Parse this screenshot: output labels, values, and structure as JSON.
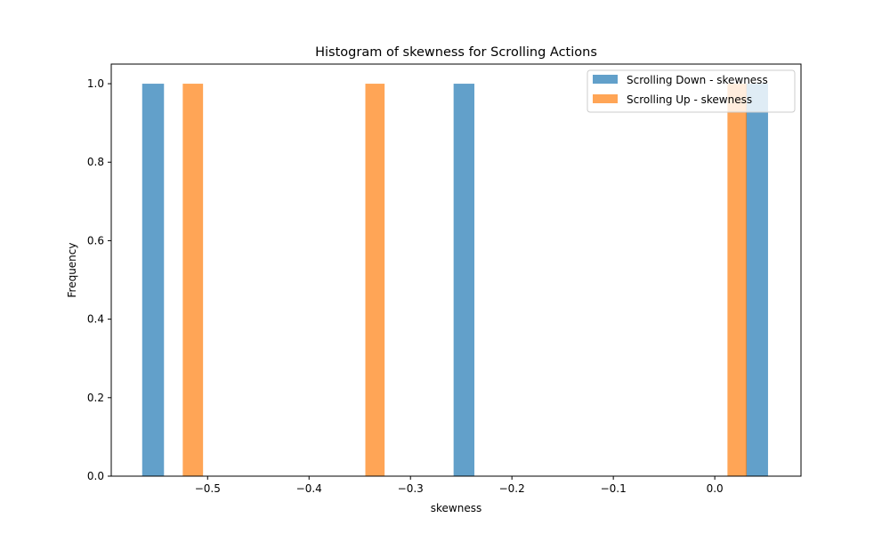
{
  "chart_data": {
    "type": "bar",
    "title": "Histogram of skewness for Scrolling Actions",
    "xlabel": "skewness",
    "ylabel": "Frequency",
    "xlim": [
      -0.595,
      0.085
    ],
    "ylim": [
      0,
      1.05
    ],
    "x_ticks": [
      -0.5,
      -0.4,
      -0.3,
      -0.2,
      -0.1,
      0.0
    ],
    "x_tick_labels": [
      "−0.5",
      "−0.4",
      "−0.3",
      "−0.2",
      "−0.1",
      "0.0"
    ],
    "y_ticks": [
      0.0,
      0.2,
      0.4,
      0.6,
      0.8,
      1.0
    ],
    "y_tick_labels": [
      "0.0",
      "0.2",
      "0.4",
      "0.6",
      "0.8",
      "1.0"
    ],
    "grid": false,
    "legend_position": "top-right",
    "series": [
      {
        "name": "Scrolling Down - skewness",
        "color": "#1f77b4",
        "opacity": 0.7,
        "bins": [
          {
            "x0": -0.5645,
            "x1": -0.543,
            "count": 1
          },
          {
            "x0": -0.2575,
            "x1": -0.237,
            "count": 1
          },
          {
            "x0": 0.0305,
            "x1": 0.0525,
            "count": 1
          }
        ]
      },
      {
        "name": "Scrolling Up - skewness",
        "color": "#ff7f0e",
        "opacity": 0.7,
        "bins": [
          {
            "x0": -0.5245,
            "x1": -0.5045,
            "count": 1
          },
          {
            "x0": -0.3445,
            "x1": -0.3255,
            "count": 1
          },
          {
            "x0": 0.0125,
            "x1": 0.0315,
            "count": 1
          }
        ]
      }
    ]
  }
}
